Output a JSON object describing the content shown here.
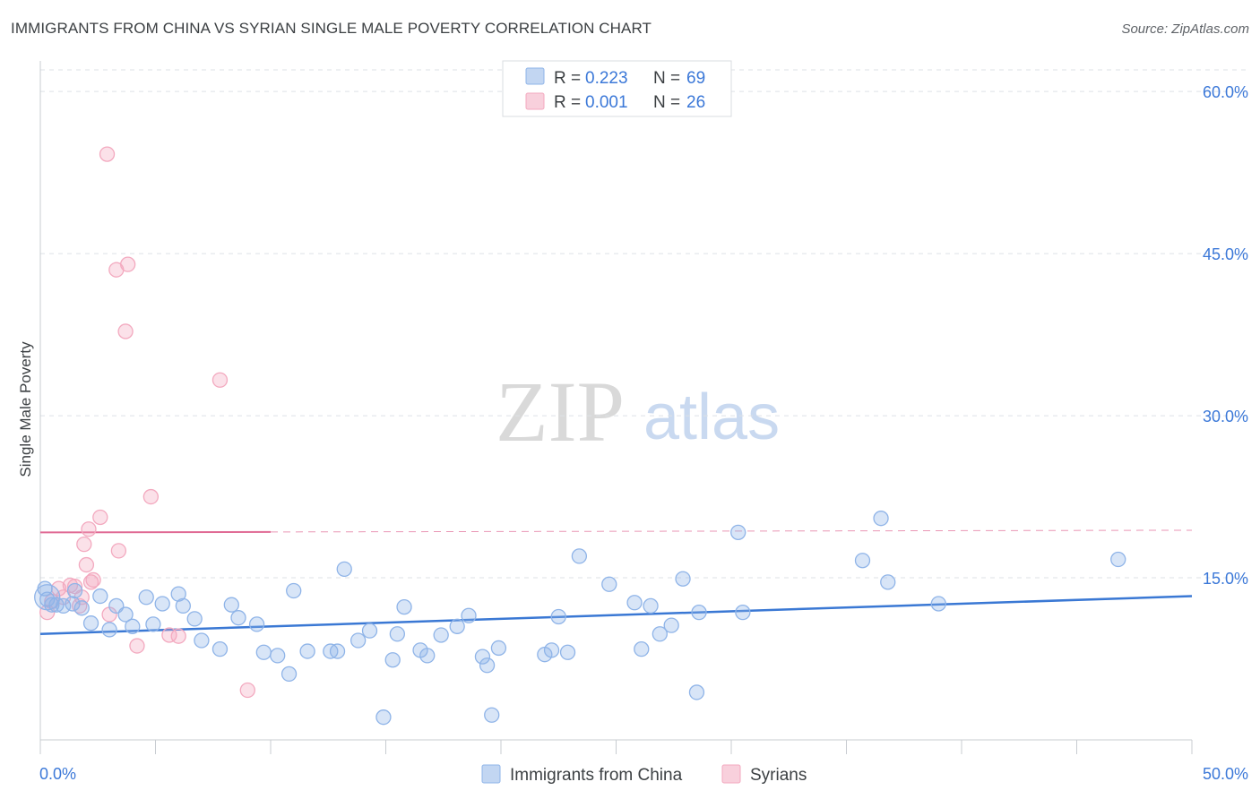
{
  "header": {
    "title": "IMMIGRANTS FROM CHINA VS SYRIAN SINGLE MALE POVERTY CORRELATION CHART",
    "source": "Source: ZipAtlas.com"
  },
  "watermark": {
    "zip": "ZIP",
    "atlas": "atlas"
  },
  "colors": {
    "china": "#8fb4e8",
    "china_line": "#3a78d4",
    "syria": "#f3a9bf",
    "syria_line": "#e06a94",
    "grid": "#dde1e6",
    "tick_text": "#3b78d8"
  },
  "legend": {
    "rows": [
      {
        "r_label": "R = ",
        "r_value": "0.223",
        "n_label": "N = ",
        "n_value": "69"
      },
      {
        "r_label": "R = ",
        "r_value": "0.001",
        "n_label": "N = ",
        "n_value": "26"
      }
    ]
  },
  "bottom_legend": {
    "china": "Immigrants from China",
    "syria": "Syrians"
  },
  "chart_data": {
    "type": "scatter",
    "title": "IMMIGRANTS FROM CHINA VS SYRIAN SINGLE MALE POVERTY CORRELATION CHART",
    "xlabel": "",
    "ylabel": "Single Male Poverty",
    "xlim": [
      0,
      50
    ],
    "ylim": [
      0,
      62
    ],
    "x_tick_labels": [
      "0.0%",
      "50.0%"
    ],
    "y_ticks": [
      15,
      30,
      45,
      60
    ],
    "y_tick_labels": [
      "15.0%",
      "30.0%",
      "45.0%",
      "60.0%"
    ],
    "x_minor_ticks": [
      0,
      5,
      10,
      15,
      20,
      25,
      30,
      35,
      40,
      45,
      50
    ],
    "series": [
      {
        "name": "Immigrants from China",
        "r": 0.223,
        "n": 69,
        "trend": {
          "x": [
            0,
            50
          ],
          "y": [
            9.8,
            13.3
          ]
        },
        "points": [
          [
            0.3,
            13.0
          ],
          [
            0.5,
            12.5
          ],
          [
            1.0,
            12.4
          ],
          [
            1.4,
            12.6
          ],
          [
            1.8,
            12.2
          ],
          [
            2.2,
            10.8
          ],
          [
            2.6,
            13.3
          ],
          [
            3.0,
            10.2
          ],
          [
            3.3,
            12.4
          ],
          [
            3.7,
            11.6
          ],
          [
            4.0,
            10.5
          ],
          [
            4.6,
            13.2
          ],
          [
            4.9,
            10.7
          ],
          [
            5.3,
            12.6
          ],
          [
            6.0,
            13.5
          ],
          [
            6.2,
            12.4
          ],
          [
            6.7,
            11.2
          ],
          [
            7.0,
            9.2
          ],
          [
            7.8,
            8.4
          ],
          [
            8.3,
            12.5
          ],
          [
            8.6,
            11.3
          ],
          [
            9.4,
            10.7
          ],
          [
            9.7,
            8.1
          ],
          [
            10.3,
            7.8
          ],
          [
            10.8,
            6.1
          ],
          [
            11.0,
            13.8
          ],
          [
            11.6,
            8.2
          ],
          [
            12.6,
            8.2
          ],
          [
            12.9,
            8.2
          ],
          [
            13.2,
            15.8
          ],
          [
            13.8,
            9.2
          ],
          [
            14.3,
            10.1
          ],
          [
            14.9,
            2.1
          ],
          [
            15.3,
            7.4
          ],
          [
            15.5,
            9.8
          ],
          [
            15.8,
            12.3
          ],
          [
            16.5,
            8.3
          ],
          [
            16.8,
            7.8
          ],
          [
            17.4,
            9.7
          ],
          [
            18.1,
            10.5
          ],
          [
            18.6,
            11.5
          ],
          [
            19.2,
            7.7
          ],
          [
            19.4,
            6.9
          ],
          [
            19.6,
            2.3
          ],
          [
            19.9,
            8.5
          ],
          [
            21.9,
            7.9
          ],
          [
            22.2,
            8.3
          ],
          [
            22.5,
            11.4
          ],
          [
            22.9,
            8.1
          ],
          [
            23.4,
            17.0
          ],
          [
            24.7,
            14.4
          ],
          [
            25.8,
            12.7
          ],
          [
            26.1,
            8.4
          ],
          [
            26.5,
            12.4
          ],
          [
            26.9,
            9.8
          ],
          [
            27.4,
            10.6
          ],
          [
            27.9,
            14.9
          ],
          [
            28.5,
            4.4
          ],
          [
            28.6,
            11.8
          ],
          [
            30.3,
            19.2
          ],
          [
            30.5,
            11.8
          ],
          [
            35.7,
            16.6
          ],
          [
            36.5,
            20.5
          ],
          [
            36.8,
            14.6
          ],
          [
            39.0,
            12.6
          ],
          [
            46.8,
            16.7
          ],
          [
            0.2,
            14.0
          ],
          [
            0.7,
            12.5
          ],
          [
            1.5,
            13.8
          ]
        ]
      },
      {
        "name": "Syrians",
        "r": 0.001,
        "n": 26,
        "trend": {
          "x": [
            0,
            50
          ],
          "y": [
            19.2,
            19.4
          ],
          "solid_until_x": 10
        },
        "points": [
          [
            0.3,
            11.8
          ],
          [
            0.5,
            12.8
          ],
          [
            0.8,
            14.0
          ],
          [
            1.0,
            13.2
          ],
          [
            1.3,
            14.3
          ],
          [
            1.5,
            14.2
          ],
          [
            1.7,
            12.4
          ],
          [
            1.8,
            13.2
          ],
          [
            1.9,
            18.1
          ],
          [
            2.0,
            16.2
          ],
          [
            2.1,
            19.5
          ],
          [
            2.2,
            14.6
          ],
          [
            2.3,
            14.8
          ],
          [
            2.6,
            20.6
          ],
          [
            2.9,
            54.2
          ],
          [
            3.0,
            11.6
          ],
          [
            3.3,
            43.5
          ],
          [
            3.4,
            17.5
          ],
          [
            3.7,
            37.8
          ],
          [
            3.8,
            44.0
          ],
          [
            4.2,
            8.7
          ],
          [
            4.8,
            22.5
          ],
          [
            5.6,
            9.7
          ],
          [
            6.0,
            9.6
          ],
          [
            7.8,
            33.3
          ],
          [
            9.0,
            4.6
          ]
        ]
      }
    ]
  }
}
